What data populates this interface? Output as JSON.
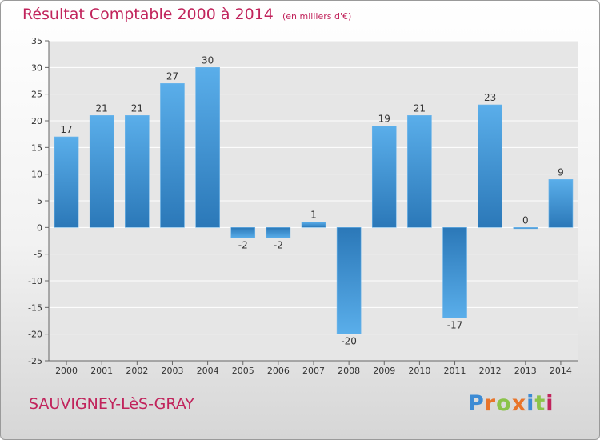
{
  "title": "Résultat Comptable 2000 à 2014",
  "subtitle": "(en milliers d'€)",
  "commune": "SAUVIGNEY-LèS-GRAY",
  "logo": {
    "text": "Proxiti",
    "letters": [
      "P",
      "r",
      "o",
      "x",
      "i",
      "t",
      "i"
    ],
    "colors": [
      "#3d8bd4",
      "#e8742a",
      "#8bc34a",
      "#e8742a",
      "#3d8bd4",
      "#8bc34a",
      "#c1245c"
    ]
  },
  "colors": {
    "title": "#c1245c",
    "bar_light": "#5aaeea",
    "bar_dark": "#2b78b8",
    "axis": "#666666",
    "grid": "#ffffff"
  },
  "chart_data": {
    "type": "bar",
    "title": "Résultat Comptable 2000 à 2014",
    "subtitle": "(en milliers d'€)",
    "xlabel": "",
    "ylabel": "",
    "categories": [
      "2000",
      "2001",
      "2002",
      "2003",
      "2004",
      "2005",
      "2006",
      "2007",
      "2008",
      "2009",
      "2010",
      "2011",
      "2012",
      "2013",
      "2014"
    ],
    "values": [
      17,
      21,
      21,
      27,
      30,
      -2,
      -2,
      1,
      -20,
      19,
      21,
      -17,
      23,
      0,
      9
    ],
    "ylim": [
      -25,
      35
    ],
    "yticks": [
      35,
      30,
      25,
      20,
      15,
      10,
      5,
      0,
      -5,
      -10,
      -15,
      -20,
      -25
    ],
    "grid": true,
    "legend": "none"
  }
}
